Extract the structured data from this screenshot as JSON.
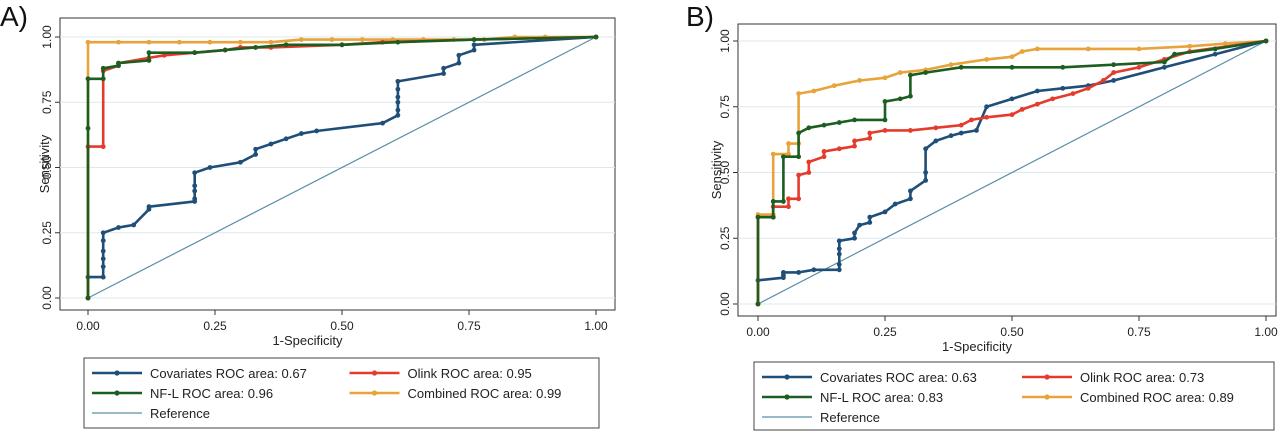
{
  "chart_data": [
    {
      "type": "line",
      "panel_label": "A)",
      "xlabel": "1-Specificity",
      "ylabel": "Sensitivity",
      "xlim": [
        0,
        1
      ],
      "ylim": [
        0,
        1
      ],
      "x_ticks": [
        "0.00",
        "0.25",
        "0.50",
        "0.75",
        "1.00"
      ],
      "y_ticks": [
        "0.00",
        "0.25",
        "0.50",
        "0.75",
        "1.00"
      ],
      "grid": true,
      "legend_position": "bottom",
      "series": [
        {
          "name": "Covariates ROC area: 0.67",
          "color": "#1f4e79",
          "points": [
            [
              0,
              0
            ],
            [
              0,
              0.08
            ],
            [
              0.03,
              0.08
            ],
            [
              0.03,
              0.12
            ],
            [
              0.03,
              0.15
            ],
            [
              0.03,
              0.18
            ],
            [
              0.03,
              0.22
            ],
            [
              0.03,
              0.25
            ],
            [
              0.06,
              0.27
            ],
            [
              0.09,
              0.28
            ],
            [
              0.12,
              0.34
            ],
            [
              0.12,
              0.35
            ],
            [
              0.21,
              0.37
            ],
            [
              0.21,
              0.38
            ],
            [
              0.21,
              0.41
            ],
            [
              0.21,
              0.43
            ],
            [
              0.21,
              0.48
            ],
            [
              0.24,
              0.5
            ],
            [
              0.3,
              0.52
            ],
            [
              0.33,
              0.55
            ],
            [
              0.33,
              0.57
            ],
            [
              0.36,
              0.59
            ],
            [
              0.39,
              0.61
            ],
            [
              0.42,
              0.63
            ],
            [
              0.45,
              0.64
            ],
            [
              0.58,
              0.67
            ],
            [
              0.61,
              0.7
            ],
            [
              0.61,
              0.72
            ],
            [
              0.61,
              0.75
            ],
            [
              0.61,
              0.77
            ],
            [
              0.61,
              0.8
            ],
            [
              0.61,
              0.83
            ],
            [
              0.7,
              0.86
            ],
            [
              0.7,
              0.88
            ],
            [
              0.73,
              0.9
            ],
            [
              0.73,
              0.93
            ],
            [
              0.76,
              0.95
            ],
            [
              0.76,
              0.97
            ],
            [
              1,
              1
            ]
          ]
        },
        {
          "name": "Olink ROC area: 0.95",
          "color": "#e53b2c",
          "points": [
            [
              0,
              0
            ],
            [
              0,
              0.58
            ],
            [
              0.03,
              0.58
            ],
            [
              0.03,
              0.87
            ],
            [
              0.06,
              0.89
            ],
            [
              0.06,
              0.9
            ],
            [
              0.12,
              0.92
            ],
            [
              0.15,
              0.93
            ],
            [
              0.21,
              0.94
            ],
            [
              0.27,
              0.95
            ],
            [
              0.3,
              0.96
            ],
            [
              0.36,
              0.96
            ],
            [
              0.5,
              0.97
            ],
            [
              0.58,
              0.98
            ],
            [
              0.76,
              0.99
            ],
            [
              1,
              1
            ]
          ]
        },
        {
          "name": "NF-L ROC area: 0.96",
          "color": "#1b5e20",
          "points": [
            [
              0,
              0
            ],
            [
              0,
              0.65
            ],
            [
              0,
              0.84
            ],
            [
              0.03,
              0.84
            ],
            [
              0.03,
              0.88
            ],
            [
              0.06,
              0.89
            ],
            [
              0.06,
              0.9
            ],
            [
              0.12,
              0.91
            ],
            [
              0.12,
              0.94
            ],
            [
              0.21,
              0.94
            ],
            [
              0.27,
              0.95
            ],
            [
              0.33,
              0.96
            ],
            [
              0.39,
              0.97
            ],
            [
              0.5,
              0.97
            ],
            [
              0.61,
              0.98
            ],
            [
              0.76,
              0.99
            ],
            [
              1,
              1
            ]
          ]
        },
        {
          "name": "Combined ROC area: 0.99",
          "color": "#e8a33a",
          "points": [
            [
              0,
              0
            ],
            [
              0,
              0.98
            ],
            [
              0.06,
              0.98
            ],
            [
              0.12,
              0.98
            ],
            [
              0.18,
              0.98
            ],
            [
              0.24,
              0.98
            ],
            [
              0.3,
              0.98
            ],
            [
              0.36,
              0.98
            ],
            [
              0.42,
              0.99
            ],
            [
              0.48,
              0.99
            ],
            [
              0.54,
              0.99
            ],
            [
              0.6,
              0.99
            ],
            [
              0.66,
              0.99
            ],
            [
              0.72,
              0.99
            ],
            [
              0.78,
              0.99
            ],
            [
              0.84,
              1
            ],
            [
              0.9,
              1
            ],
            [
              1,
              1
            ]
          ]
        },
        {
          "name": "Reference",
          "color": "#5b8fa8",
          "points": [
            [
              0,
              0
            ],
            [
              1,
              1
            ]
          ]
        }
      ]
    },
    {
      "type": "line",
      "panel_label": "B)",
      "xlabel": "1-Specificity",
      "ylabel": "Sensitivity",
      "xlim": [
        0,
        1
      ],
      "ylim": [
        0,
        1
      ],
      "x_ticks": [
        "0.00",
        "0.25",
        "0.50",
        "0.75",
        "1.00"
      ],
      "y_ticks": [
        "0.00",
        "0.25",
        "0.50",
        "0.75",
        "1.00"
      ],
      "grid": true,
      "legend_position": "bottom",
      "series": [
        {
          "name": "Covariates ROC area: 0.63",
          "color": "#1f4e79",
          "points": [
            [
              0,
              0.09
            ],
            [
              0.05,
              0.1
            ],
            [
              0.05,
              0.11
            ],
            [
              0.05,
              0.12
            ],
            [
              0.08,
              0.12
            ],
            [
              0.11,
              0.13
            ],
            [
              0.16,
              0.13
            ],
            [
              0.16,
              0.15
            ],
            [
              0.16,
              0.19
            ],
            [
              0.16,
              0.21
            ],
            [
              0.16,
              0.24
            ],
            [
              0.19,
              0.25
            ],
            [
              0.19,
              0.27
            ],
            [
              0.2,
              0.3
            ],
            [
              0.22,
              0.31
            ],
            [
              0.22,
              0.33
            ],
            [
              0.25,
              0.35
            ],
            [
              0.27,
              0.38
            ],
            [
              0.3,
              0.4
            ],
            [
              0.3,
              0.43
            ],
            [
              0.33,
              0.47
            ],
            [
              0.33,
              0.5
            ],
            [
              0.33,
              0.59
            ],
            [
              0.35,
              0.62
            ],
            [
              0.38,
              0.64
            ],
            [
              0.4,
              0.65
            ],
            [
              0.43,
              0.66
            ],
            [
              0.45,
              0.75
            ],
            [
              0.5,
              0.78
            ],
            [
              0.55,
              0.81
            ],
            [
              0.6,
              0.82
            ],
            [
              0.65,
              0.83
            ],
            [
              0.7,
              0.85
            ],
            [
              0.8,
              0.9
            ],
            [
              0.9,
              0.95
            ],
            [
              1,
              1
            ]
          ]
        },
        {
          "name": "Olink ROC area: 0.73",
          "color": "#e53b2c",
          "points": [
            [
              0,
              0
            ],
            [
              0,
              0.33
            ],
            [
              0.03,
              0.33
            ],
            [
              0.03,
              0.37
            ],
            [
              0.06,
              0.37
            ],
            [
              0.06,
              0.4
            ],
            [
              0.08,
              0.4
            ],
            [
              0.08,
              0.49
            ],
            [
              0.1,
              0.5
            ],
            [
              0.1,
              0.54
            ],
            [
              0.13,
              0.56
            ],
            [
              0.13,
              0.58
            ],
            [
              0.16,
              0.59
            ],
            [
              0.19,
              0.6
            ],
            [
              0.19,
              0.62
            ],
            [
              0.22,
              0.63
            ],
            [
              0.22,
              0.65
            ],
            [
              0.25,
              0.66
            ],
            [
              0.3,
              0.66
            ],
            [
              0.35,
              0.67
            ],
            [
              0.4,
              0.68
            ],
            [
              0.42,
              0.7
            ],
            [
              0.45,
              0.71
            ],
            [
              0.5,
              0.72
            ],
            [
              0.52,
              0.74
            ],
            [
              0.55,
              0.76
            ],
            [
              0.58,
              0.78
            ],
            [
              0.62,
              0.8
            ],
            [
              0.65,
              0.82
            ],
            [
              0.68,
              0.85
            ],
            [
              0.7,
              0.88
            ],
            [
              0.75,
              0.9
            ],
            [
              0.8,
              0.93
            ],
            [
              0.85,
              0.96
            ],
            [
              1,
              1
            ]
          ]
        },
        {
          "name": "NF-L ROC area: 0.83",
          "color": "#1b5e20",
          "points": [
            [
              0,
              0
            ],
            [
              0,
              0.33
            ],
            [
              0.03,
              0.33
            ],
            [
              0.03,
              0.39
            ],
            [
              0.05,
              0.39
            ],
            [
              0.05,
              0.56
            ],
            [
              0.08,
              0.56
            ],
            [
              0.08,
              0.65
            ],
            [
              0.1,
              0.67
            ],
            [
              0.13,
              0.68
            ],
            [
              0.16,
              0.69
            ],
            [
              0.19,
              0.7
            ],
            [
              0.25,
              0.7
            ],
            [
              0.25,
              0.77
            ],
            [
              0.28,
              0.78
            ],
            [
              0.3,
              0.79
            ],
            [
              0.3,
              0.87
            ],
            [
              0.33,
              0.88
            ],
            [
              0.4,
              0.9
            ],
            [
              0.5,
              0.9
            ],
            [
              0.6,
              0.9
            ],
            [
              0.7,
              0.91
            ],
            [
              0.8,
              0.92
            ],
            [
              0.82,
              0.95
            ],
            [
              0.9,
              0.97
            ],
            [
              1,
              1
            ]
          ]
        },
        {
          "name": "Combined ROC area: 0.89",
          "color": "#e8a33a",
          "points": [
            [
              0,
              0
            ],
            [
              0,
              0.34
            ],
            [
              0.03,
              0.34
            ],
            [
              0.03,
              0.57
            ],
            [
              0.06,
              0.57
            ],
            [
              0.06,
              0.61
            ],
            [
              0.08,
              0.61
            ],
            [
              0.08,
              0.8
            ],
            [
              0.11,
              0.81
            ],
            [
              0.15,
              0.83
            ],
            [
              0.2,
              0.85
            ],
            [
              0.25,
              0.86
            ],
            [
              0.28,
              0.88
            ],
            [
              0.33,
              0.89
            ],
            [
              0.38,
              0.91
            ],
            [
              0.45,
              0.93
            ],
            [
              0.5,
              0.94
            ],
            [
              0.52,
              0.96
            ],
            [
              0.55,
              0.97
            ],
            [
              0.65,
              0.97
            ],
            [
              0.75,
              0.97
            ],
            [
              0.85,
              0.98
            ],
            [
              0.92,
              0.99
            ],
            [
              1,
              1
            ]
          ]
        },
        {
          "name": "Reference",
          "color": "#5b8fa8",
          "points": [
            [
              0,
              0
            ],
            [
              1,
              1
            ]
          ]
        }
      ]
    }
  ]
}
